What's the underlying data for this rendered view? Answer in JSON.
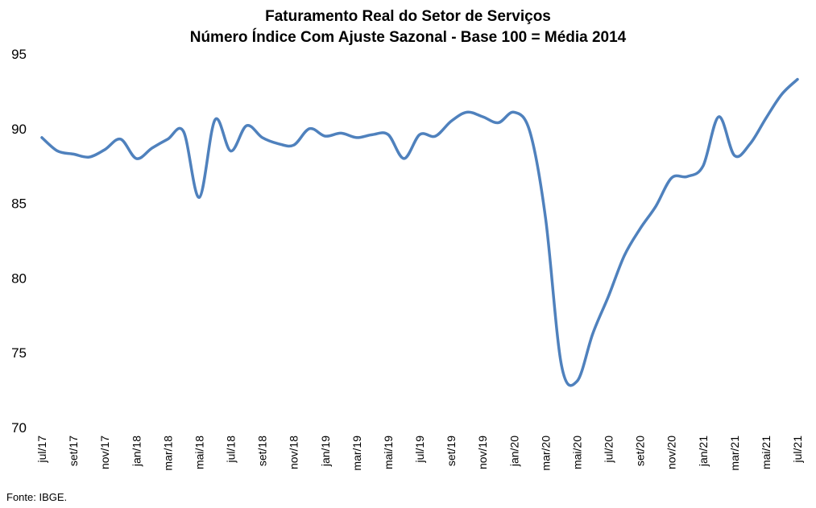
{
  "chart_data": {
    "type": "line",
    "title": "Faturamento Real do Setor de Serviços",
    "subtitle": "Número Índice Com Ajuste Sazonal - Base 100 = Média 2014",
    "xlabel": "",
    "ylabel": "",
    "ylim": [
      70,
      95
    ],
    "yticks": [
      70,
      75,
      80,
      85,
      90,
      95
    ],
    "grid": false,
    "x_labels": [
      "jul/17",
      "set/17",
      "nov/17",
      "jan/18",
      "mar/18",
      "mai/18",
      "jul/18",
      "set/18",
      "nov/18",
      "jan/19",
      "mar/19",
      "mai/19",
      "jul/19",
      "set/19",
      "nov/19",
      "jan/20",
      "mar/20",
      "mai/20",
      "jul/20",
      "set/20",
      "nov/20",
      "jan/21",
      "mar/21",
      "mai/21",
      "jul/21"
    ],
    "series": [
      {
        "name": "",
        "color": "#4f81bd",
        "x": [
          "jul/17",
          "ago/17",
          "set/17",
          "out/17",
          "nov/17",
          "dez/17",
          "jan/18",
          "fev/18",
          "mar/18",
          "abr/18",
          "mai/18",
          "jun/18",
          "jul/18",
          "ago/18",
          "set/18",
          "out/18",
          "nov/18",
          "dez/18",
          "jan/19",
          "fev/19",
          "mar/19",
          "abr/19",
          "mai/19",
          "jun/19",
          "jul/19",
          "ago/19",
          "set/19",
          "out/19",
          "nov/19",
          "dez/19",
          "jan/20",
          "fev/20",
          "mar/20",
          "abr/20",
          "mai/20",
          "jun/20",
          "jul/20",
          "ago/20",
          "set/20",
          "out/20",
          "nov/20",
          "dez/20",
          "jan/21",
          "fev/21",
          "mar/21",
          "abr/21",
          "mai/21",
          "jun/21",
          "jul/21"
        ],
        "values": [
          89.4,
          88.5,
          88.3,
          88.1,
          88.6,
          89.3,
          88.0,
          88.7,
          89.3,
          89.8,
          85.4,
          90.6,
          88.5,
          90.2,
          89.4,
          89.0,
          88.9,
          90.0,
          89.5,
          89.7,
          89.4,
          89.6,
          89.6,
          88.0,
          89.6,
          89.5,
          90.5,
          91.1,
          90.8,
          90.4,
          91.1,
          89.8,
          84.0,
          74.2,
          73.1,
          76.3,
          78.8,
          81.5,
          83.3,
          84.8,
          86.7,
          86.8,
          87.5,
          90.8,
          88.2,
          89.0,
          90.7,
          92.3,
          93.3
        ]
      }
    ]
  },
  "source": "Fonte: IBGE."
}
